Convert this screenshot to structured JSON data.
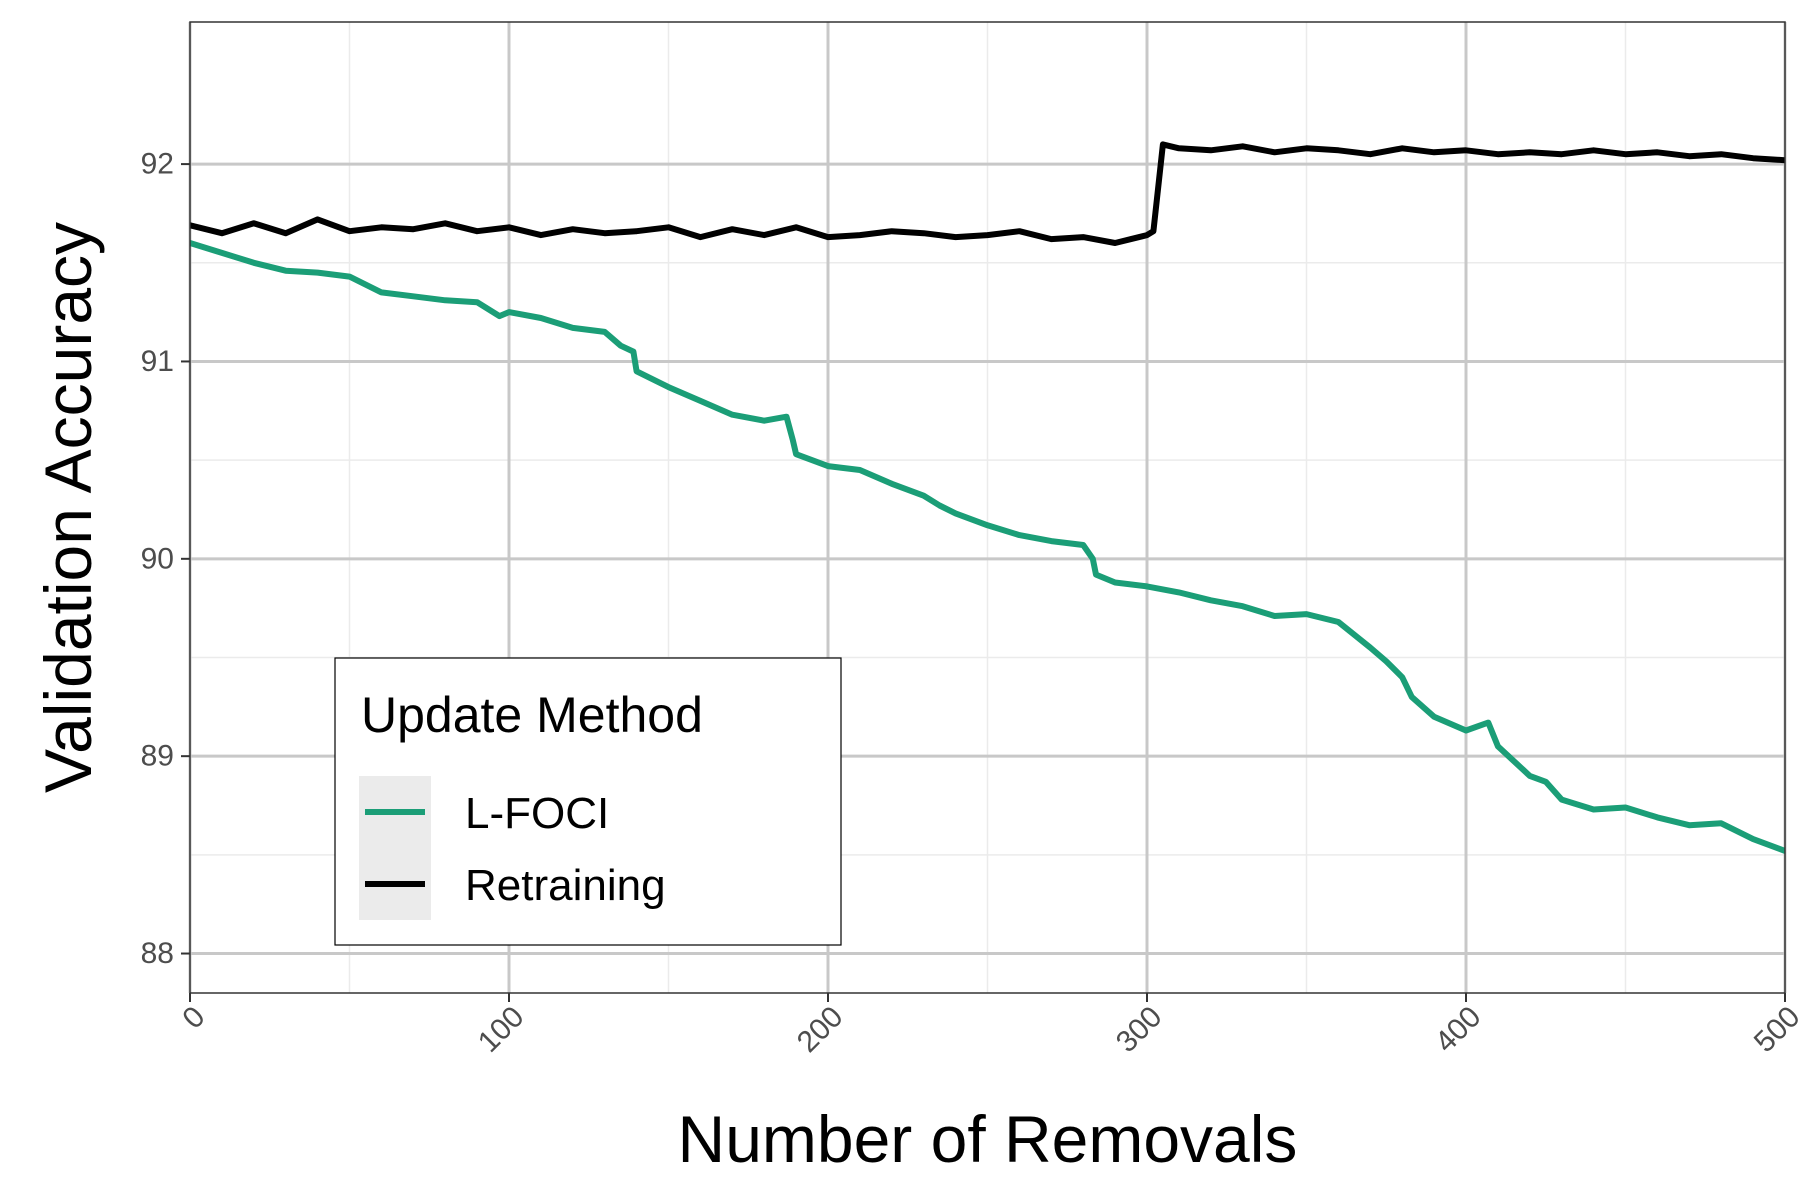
{
  "chart_data": {
    "type": "line",
    "title": "",
    "xlabel": "Number of Removals",
    "ylabel": "Validation Accuracy",
    "xlim": [
      0,
      500
    ],
    "ylim": [
      87.8,
      92.72
    ],
    "x_ticks": [
      0,
      100,
      200,
      300,
      400,
      500
    ],
    "x_tick_labels": [
      "0",
      "100",
      "200",
      "300",
      "400",
      "500"
    ],
    "y_ticks": [
      88,
      89,
      90,
      91,
      92
    ],
    "y_tick_labels": [
      "88",
      "89",
      "90",
      "91",
      "92"
    ],
    "grid": true,
    "legend": {
      "title": "Update Method",
      "position": "bottom-left",
      "entries": [
        "L-FOCI",
        "Retraining"
      ]
    },
    "series": [
      {
        "name": "L-FOCI",
        "color": "#1b9e77",
        "x": [
          0,
          10,
          20,
          30,
          40,
          50,
          60,
          70,
          80,
          90,
          97,
          100,
          110,
          120,
          130,
          135,
          139,
          140,
          150,
          160,
          170,
          180,
          187,
          189,
          190,
          200,
          210,
          220,
          230,
          235,
          240,
          250,
          260,
          270,
          280,
          283,
          284,
          290,
          300,
          310,
          320,
          330,
          340,
          350,
          360,
          370,
          375,
          380,
          383,
          390,
          400,
          407,
          410,
          420,
          425,
          430,
          440,
          450,
          460,
          470,
          480,
          490,
          500
        ],
        "y": [
          91.6,
          91.55,
          91.5,
          91.46,
          91.45,
          91.43,
          91.35,
          91.33,
          91.31,
          91.3,
          91.23,
          91.25,
          91.22,
          91.17,
          91.15,
          91.08,
          91.05,
          90.95,
          90.87,
          90.8,
          90.73,
          90.7,
          90.72,
          90.6,
          90.53,
          90.47,
          90.45,
          90.38,
          90.32,
          90.27,
          90.23,
          90.17,
          90.12,
          90.09,
          90.07,
          90.0,
          89.92,
          89.88,
          89.86,
          89.83,
          89.79,
          89.76,
          89.71,
          89.72,
          89.68,
          89.55,
          89.48,
          89.4,
          89.3,
          89.2,
          89.13,
          89.17,
          89.05,
          88.9,
          88.87,
          88.78,
          88.73,
          88.74,
          88.69,
          88.65,
          88.66,
          88.58,
          88.52
        ]
      },
      {
        "name": "Retraining",
        "color": "#000000",
        "x": [
          0,
          10,
          20,
          30,
          40,
          50,
          60,
          70,
          80,
          90,
          100,
          110,
          120,
          130,
          140,
          150,
          160,
          170,
          180,
          190,
          200,
          210,
          220,
          230,
          240,
          250,
          260,
          270,
          280,
          290,
          295,
          300,
          302,
          305,
          310,
          320,
          330,
          340,
          350,
          360,
          370,
          380,
          390,
          400,
          410,
          420,
          430,
          440,
          450,
          460,
          470,
          480,
          490,
          500
        ],
        "y": [
          91.69,
          91.65,
          91.7,
          91.65,
          91.72,
          91.66,
          91.68,
          91.67,
          91.7,
          91.66,
          91.68,
          91.64,
          91.67,
          91.65,
          91.66,
          91.68,
          91.63,
          91.67,
          91.64,
          91.68,
          91.63,
          91.64,
          91.66,
          91.65,
          91.63,
          91.64,
          91.66,
          91.62,
          91.63,
          91.6,
          91.62,
          91.64,
          91.66,
          92.1,
          92.08,
          92.07,
          92.09,
          92.06,
          92.08,
          92.07,
          92.05,
          92.08,
          92.06,
          92.07,
          92.05,
          92.06,
          92.05,
          92.07,
          92.05,
          92.06,
          92.04,
          92.05,
          92.03,
          92.02
        ]
      }
    ]
  }
}
